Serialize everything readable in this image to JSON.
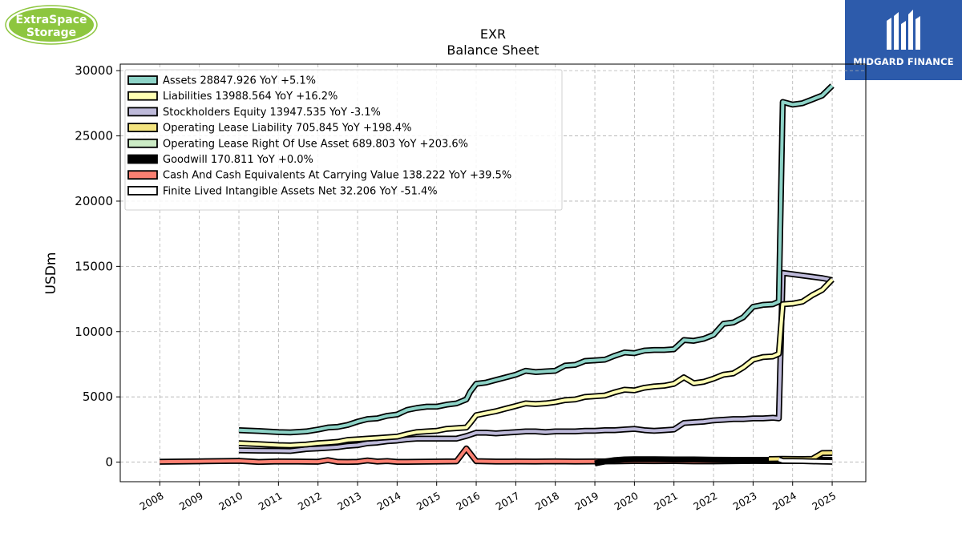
{
  "logos": {
    "left_line1": "ExtraSpace",
    "left_line2": "Storage",
    "right_brand": "MIDGARD FINANCE",
    "left_color": "#8dc63f",
    "right_color": "#2d5bab"
  },
  "chart_data": {
    "type": "line",
    "title": "EXR",
    "subtitle": "Balance  Sheet",
    "ylabel": "USDm",
    "xlabel": "",
    "xlim": [
      2007.0,
      2025.85
    ],
    "ylim": [
      -1500,
      30500
    ],
    "x_ticks": [
      "2008",
      "2009",
      "2010",
      "2011",
      "2012",
      "2013",
      "2014",
      "2015",
      "2016",
      "2017",
      "2018",
      "2019",
      "2020",
      "2021",
      "2022",
      "2023",
      "2024",
      "2025"
    ],
    "y_ticks": [
      "0",
      "5000",
      "10000",
      "15000",
      "20000",
      "25000",
      "30000"
    ],
    "grid": true,
    "legend_position": "top-left",
    "series": [
      {
        "name": "Assets",
        "legend": "Assets  28847.926 YoY +5.1%",
        "color": "#8dd3c7",
        "points": [
          [
            2010.0,
            2450
          ],
          [
            2010.5,
            2380
          ],
          [
            2011.0,
            2300
          ],
          [
            2011.3,
            2280
          ],
          [
            2011.7,
            2350
          ],
          [
            2012.0,
            2500
          ],
          [
            2012.25,
            2650
          ],
          [
            2012.5,
            2700
          ],
          [
            2012.75,
            2850
          ],
          [
            2013.0,
            3100
          ],
          [
            2013.25,
            3300
          ],
          [
            2013.5,
            3350
          ],
          [
            2013.75,
            3550
          ],
          [
            2014.0,
            3650
          ],
          [
            2014.25,
            4000
          ],
          [
            2014.5,
            4150
          ],
          [
            2014.75,
            4250
          ],
          [
            2015.0,
            4250
          ],
          [
            2015.25,
            4400
          ],
          [
            2015.5,
            4500
          ],
          [
            2015.75,
            4800
          ],
          [
            2015.85,
            5400
          ],
          [
            2016.0,
            6000
          ],
          [
            2016.25,
            6100
          ],
          [
            2016.5,
            6300
          ],
          [
            2016.75,
            6500
          ],
          [
            2017.0,
            6700
          ],
          [
            2017.25,
            7000
          ],
          [
            2017.5,
            6900
          ],
          [
            2017.75,
            6950
          ],
          [
            2018.0,
            7000
          ],
          [
            2018.25,
            7400
          ],
          [
            2018.5,
            7450
          ],
          [
            2018.75,
            7750
          ],
          [
            2019.0,
            7800
          ],
          [
            2019.25,
            7850
          ],
          [
            2019.5,
            8150
          ],
          [
            2019.75,
            8400
          ],
          [
            2020.0,
            8350
          ],
          [
            2020.25,
            8550
          ],
          [
            2020.5,
            8600
          ],
          [
            2020.75,
            8600
          ],
          [
            2021.0,
            8650
          ],
          [
            2021.25,
            9350
          ],
          [
            2021.5,
            9300
          ],
          [
            2021.75,
            9450
          ],
          [
            2022.0,
            9750
          ],
          [
            2022.25,
            10600
          ],
          [
            2022.5,
            10700
          ],
          [
            2022.75,
            11100
          ],
          [
            2023.0,
            11900
          ],
          [
            2023.25,
            12050
          ],
          [
            2023.5,
            12100
          ],
          [
            2023.65,
            12300
          ],
          [
            2023.75,
            27600
          ],
          [
            2024.0,
            27400
          ],
          [
            2024.25,
            27500
          ],
          [
            2024.5,
            27800
          ],
          [
            2024.75,
            28100
          ],
          [
            2025.0,
            28848
          ]
        ]
      },
      {
        "name": "Liabilities",
        "legend": "Liabilities  13988.564 YoY +16.2%",
        "color": "#ffffb3",
        "points": [
          [
            2010.0,
            1450
          ],
          [
            2010.5,
            1380
          ],
          [
            2011.0,
            1300
          ],
          [
            2011.3,
            1280
          ],
          [
            2011.7,
            1350
          ],
          [
            2012.0,
            1450
          ],
          [
            2012.25,
            1500
          ],
          [
            2012.5,
            1550
          ],
          [
            2012.75,
            1700
          ],
          [
            2013.0,
            1750
          ],
          [
            2013.25,
            1800
          ],
          [
            2013.5,
            1850
          ],
          [
            2013.75,
            1900
          ],
          [
            2014.0,
            1950
          ],
          [
            2014.25,
            2150
          ],
          [
            2014.5,
            2300
          ],
          [
            2014.75,
            2350
          ],
          [
            2015.0,
            2400
          ],
          [
            2015.25,
            2550
          ],
          [
            2015.5,
            2600
          ],
          [
            2015.75,
            2650
          ],
          [
            2015.85,
            3000
          ],
          [
            2016.0,
            3600
          ],
          [
            2016.25,
            3750
          ],
          [
            2016.5,
            3900
          ],
          [
            2016.75,
            4100
          ],
          [
            2017.0,
            4300
          ],
          [
            2017.25,
            4500
          ],
          [
            2017.5,
            4450
          ],
          [
            2017.75,
            4500
          ],
          [
            2018.0,
            4600
          ],
          [
            2018.25,
            4750
          ],
          [
            2018.5,
            4800
          ],
          [
            2018.75,
            5000
          ],
          [
            2019.0,
            5050
          ],
          [
            2019.25,
            5100
          ],
          [
            2019.5,
            5350
          ],
          [
            2019.75,
            5550
          ],
          [
            2020.0,
            5500
          ],
          [
            2020.25,
            5700
          ],
          [
            2020.5,
            5800
          ],
          [
            2020.75,
            5850
          ],
          [
            2021.0,
            6000
          ],
          [
            2021.25,
            6500
          ],
          [
            2021.5,
            6050
          ],
          [
            2021.75,
            6150
          ],
          [
            2022.0,
            6400
          ],
          [
            2022.25,
            6700
          ],
          [
            2022.5,
            6800
          ],
          [
            2022.75,
            7250
          ],
          [
            2023.0,
            7850
          ],
          [
            2023.25,
            8050
          ],
          [
            2023.5,
            8100
          ],
          [
            2023.65,
            8300
          ],
          [
            2023.75,
            12100
          ],
          [
            2024.0,
            12150
          ],
          [
            2024.25,
            12300
          ],
          [
            2024.5,
            12800
          ],
          [
            2024.75,
            13200
          ],
          [
            2025.0,
            13989
          ]
        ]
      },
      {
        "name": "Stockholders Equity",
        "legend": "Stockholders Equity  13947.535 YoY -3.1%",
        "color": "#bebada",
        "points": [
          [
            2010.0,
            900
          ],
          [
            2010.5,
            880
          ],
          [
            2011.0,
            870
          ],
          [
            2011.3,
            860
          ],
          [
            2011.7,
            1000
          ],
          [
            2012.0,
            1050
          ],
          [
            2012.25,
            1100
          ],
          [
            2012.5,
            1150
          ],
          [
            2012.75,
            1250
          ],
          [
            2013.0,
            1300
          ],
          [
            2013.25,
            1450
          ],
          [
            2013.5,
            1500
          ],
          [
            2013.75,
            1600
          ],
          [
            2014.0,
            1650
          ],
          [
            2014.25,
            1750
          ],
          [
            2014.5,
            1800
          ],
          [
            2014.75,
            1800
          ],
          [
            2015.0,
            1800
          ],
          [
            2015.25,
            1800
          ],
          [
            2015.5,
            1800
          ],
          [
            2015.75,
            2000
          ],
          [
            2016.0,
            2250
          ],
          [
            2016.25,
            2250
          ],
          [
            2016.5,
            2200
          ],
          [
            2016.75,
            2250
          ],
          [
            2017.0,
            2300
          ],
          [
            2017.25,
            2350
          ],
          [
            2017.5,
            2350
          ],
          [
            2017.75,
            2300
          ],
          [
            2018.0,
            2350
          ],
          [
            2018.25,
            2350
          ],
          [
            2018.5,
            2350
          ],
          [
            2018.75,
            2400
          ],
          [
            2019.0,
            2400
          ],
          [
            2019.25,
            2450
          ],
          [
            2019.5,
            2450
          ],
          [
            2019.75,
            2500
          ],
          [
            2020.0,
            2550
          ],
          [
            2020.25,
            2450
          ],
          [
            2020.5,
            2400
          ],
          [
            2020.75,
            2450
          ],
          [
            2021.0,
            2500
          ],
          [
            2021.25,
            3000
          ],
          [
            2021.5,
            3050
          ],
          [
            2021.75,
            3100
          ],
          [
            2022.0,
            3200
          ],
          [
            2022.25,
            3250
          ],
          [
            2022.5,
            3300
          ],
          [
            2022.75,
            3300
          ],
          [
            2023.0,
            3350
          ],
          [
            2023.25,
            3350
          ],
          [
            2023.5,
            3400
          ],
          [
            2023.65,
            3350
          ],
          [
            2023.75,
            14500
          ],
          [
            2024.0,
            14400
          ],
          [
            2024.25,
            14300
          ],
          [
            2024.5,
            14200
          ],
          [
            2024.75,
            14100
          ],
          [
            2025.0,
            13948
          ]
        ]
      },
      {
        "name": "Operating Lease Liability",
        "legend": "Operating Lease Liability  705.845 YoY +198.4%",
        "color": "#f3e480",
        "points": [
          [
            2023.4,
            240
          ],
          [
            2023.75,
            250
          ],
          [
            2024.0,
            245
          ],
          [
            2024.25,
            240
          ],
          [
            2024.5,
            250
          ],
          [
            2024.75,
            700
          ],
          [
            2025.0,
            706
          ]
        ]
      },
      {
        "name": "Operating Lease Right Of Use Asset",
        "legend": "Operating Lease Right Of Use Asset  689.803 YoY +203.6%",
        "color": "#ccebc5",
        "points": [
          [
            2023.4,
            230
          ],
          [
            2023.75,
            240
          ],
          [
            2024.0,
            235
          ],
          [
            2024.25,
            230
          ],
          [
            2024.5,
            240
          ],
          [
            2024.75,
            680
          ],
          [
            2025.0,
            690
          ]
        ]
      },
      {
        "name": "Goodwill",
        "legend": "Goodwill  170.811 YoY +0.0%",
        "color": "#000000",
        "points": [
          [
            2019.0,
            -100
          ],
          [
            2019.25,
            50
          ],
          [
            2019.5,
            150
          ],
          [
            2019.75,
            200
          ],
          [
            2020.0,
            220
          ],
          [
            2020.5,
            220
          ],
          [
            2021.0,
            210
          ],
          [
            2021.5,
            200
          ],
          [
            2022.0,
            180
          ],
          [
            2022.5,
            175
          ],
          [
            2023.0,
            172
          ],
          [
            2023.5,
            171
          ],
          [
            2024.0,
            171
          ],
          [
            2024.5,
            171
          ],
          [
            2025.0,
            171
          ]
        ]
      },
      {
        "name": "Cash And Cash Equivalents At Carrying Value",
        "legend": "Cash And Cash Equivalents At Carrying Value  138.222 YoY +39.5%",
        "color": "#fb8072",
        "points": [
          [
            2008.0,
            30
          ],
          [
            2009.0,
            60
          ],
          [
            2010.0,
            100
          ],
          [
            2010.5,
            10
          ],
          [
            2011.0,
            50
          ],
          [
            2011.5,
            40
          ],
          [
            2012.0,
            30
          ],
          [
            2012.25,
            150
          ],
          [
            2012.5,
            20
          ],
          [
            2012.75,
            10
          ],
          [
            2013.0,
            30
          ],
          [
            2013.25,
            130
          ],
          [
            2013.5,
            40
          ],
          [
            2013.75,
            80
          ],
          [
            2014.0,
            20
          ],
          [
            2014.5,
            30
          ],
          [
            2015.0,
            40
          ],
          [
            2015.5,
            60
          ],
          [
            2015.75,
            1050
          ],
          [
            2016.0,
            70
          ],
          [
            2016.5,
            40
          ],
          [
            2017.0,
            50
          ],
          [
            2017.5,
            40
          ],
          [
            2018.0,
            60
          ],
          [
            2018.5,
            40
          ],
          [
            2019.0,
            50
          ],
          [
            2019.5,
            60
          ],
          [
            2020.0,
            80
          ],
          [
            2020.5,
            70
          ],
          [
            2021.0,
            80
          ],
          [
            2021.5,
            60
          ],
          [
            2022.0,
            60
          ],
          [
            2022.5,
            70
          ],
          [
            2023.0,
            90
          ],
          [
            2023.5,
            80
          ],
          [
            2024.0,
            100
          ],
          [
            2024.5,
            120
          ],
          [
            2025.0,
            138
          ]
        ]
      },
      {
        "name": "Finite Lived Intangible Assets Net",
        "legend": "Finite Lived Intangible Assets Net  32.206 YoY -51.4%",
        "color": "#ffffff",
        "points": [
          [
            2023.65,
            200
          ],
          [
            2023.75,
            100
          ],
          [
            2024.0,
            90
          ],
          [
            2024.25,
            80
          ],
          [
            2024.5,
            60
          ],
          [
            2024.75,
            40
          ],
          [
            2025.0,
            32
          ]
        ]
      }
    ]
  }
}
